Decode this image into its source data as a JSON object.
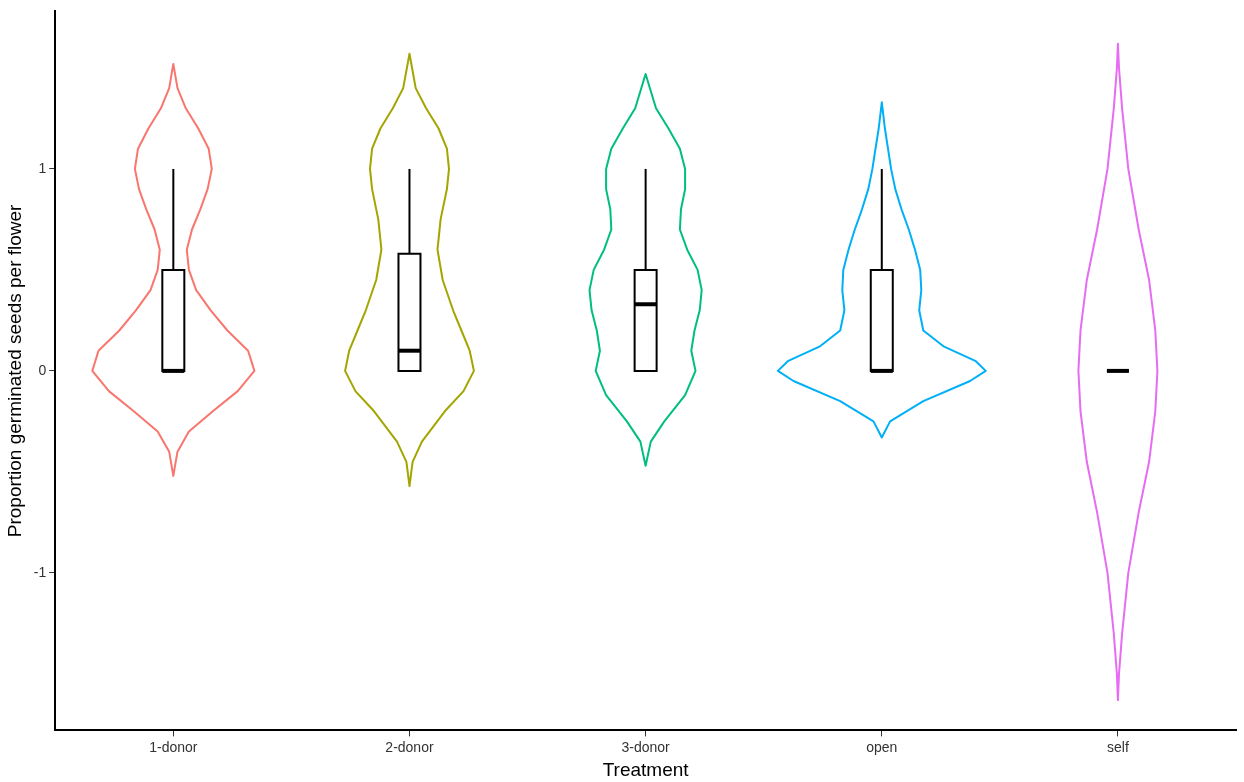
{
  "chart_data": {
    "type": "box",
    "xlabel": "Treatment",
    "ylabel": "Proportion germinated seeds per flower",
    "categories": [
      "1-donor",
      "2-donor",
      "3-donor",
      "open",
      "self"
    ],
    "ylim": [
      -1.78,
      1.78
    ],
    "yticks": [
      -1,
      0,
      1
    ],
    "grid": false,
    "legend": false,
    "boxes": [
      {
        "low": 0,
        "q1": 0,
        "median": 0,
        "q3": 0.5,
        "high": 1
      },
      {
        "low": 0,
        "q1": 0,
        "median": 0.1,
        "q3": 0.58,
        "high": 1
      },
      {
        "low": 0,
        "q1": 0,
        "median": 0.33,
        "q3": 0.5,
        "high": 1
      },
      {
        "low": 0,
        "q1": 0,
        "median": 0,
        "q3": 0.5,
        "high": 1
      },
      {
        "low": 0,
        "q1": 0,
        "median": 0,
        "q3": 0,
        "high": 0
      }
    ]
  }
}
